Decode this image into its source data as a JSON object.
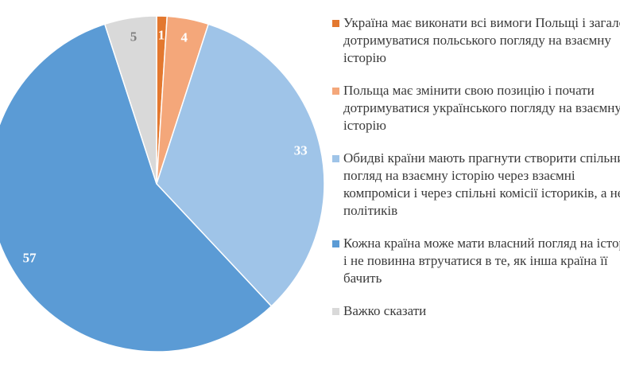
{
  "chart_data": {
    "type": "pie",
    "categories": [
      "Україна має виконати всі вимоги Польщі і загалом дотримуватися польського погляду на взаємну історію",
      "Польща має змінити свою позицію і почати дотримуватися українського погляду на взаємну історію",
      "Обидві країни мають прагнути створити спільний погляд на взаємну історію через взаємні компроміси і через спільні комісії істориків, а не політиків",
      "Кожна країна може мати власний погляд на історію і не повинна втручатися в те, як інша країна її бачить",
      "Важко сказати"
    ],
    "values": [
      1,
      4,
      33,
      57,
      5
    ],
    "colors": [
      "#e3782f",
      "#f4a77a",
      "#9fc4e8",
      "#5b9bd5",
      "#d9d9d9"
    ],
    "legend": "right"
  }
}
